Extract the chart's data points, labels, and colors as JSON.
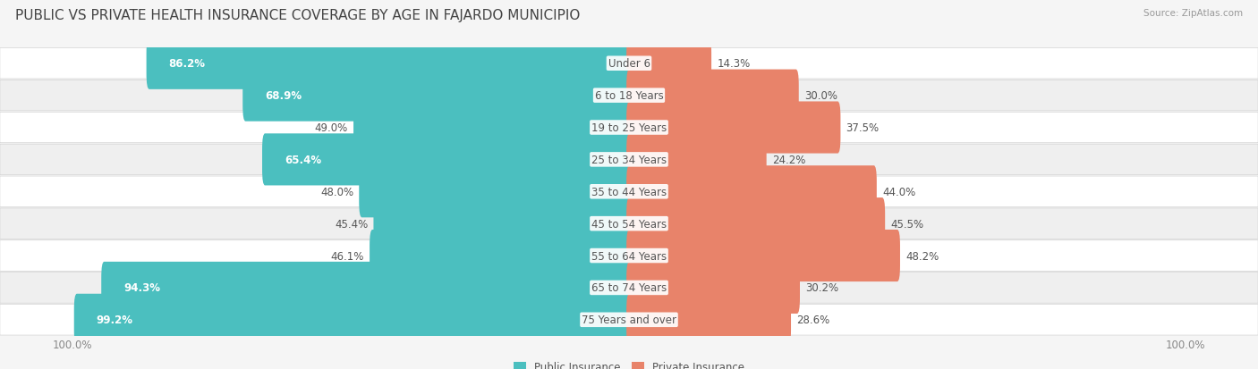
{
  "title": "PUBLIC VS PRIVATE HEALTH INSURANCE COVERAGE BY AGE IN FAJARDO MUNICIPIO",
  "source": "Source: ZipAtlas.com",
  "categories": [
    "Under 6",
    "6 to 18 Years",
    "19 to 25 Years",
    "25 to 34 Years",
    "35 to 44 Years",
    "45 to 54 Years",
    "55 to 64 Years",
    "65 to 74 Years",
    "75 Years and over"
  ],
  "public_values": [
    86.2,
    68.9,
    49.0,
    65.4,
    48.0,
    45.4,
    46.1,
    94.3,
    99.2
  ],
  "private_values": [
    14.3,
    30.0,
    37.5,
    24.2,
    44.0,
    45.5,
    48.2,
    30.2,
    28.6
  ],
  "public_color": "#4BBFBF",
  "private_color": "#E8836A",
  "row_bg_odd": "#FFFFFF",
  "row_bg_even": "#EFEFEF",
  "fig_bg_color": "#F5F5F5",
  "max_value": 100.0,
  "title_fontsize": 11,
  "label_fontsize": 8.5,
  "value_fontsize": 8.5,
  "tick_fontsize": 8.5,
  "bar_height": 0.62,
  "figsize": [
    14.06,
    4.14
  ],
  "dpi": 100
}
